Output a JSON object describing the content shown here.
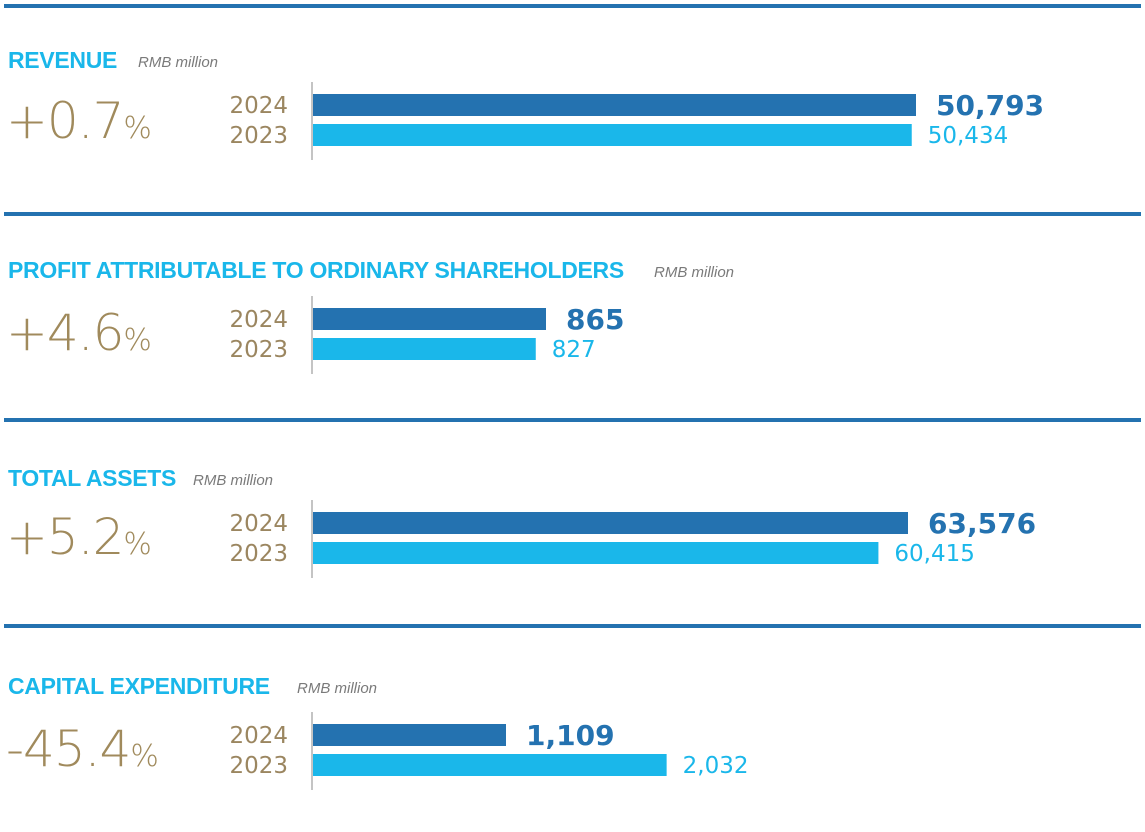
{
  "sections": [
    {
      "title": "REVENUE",
      "unit": "RMB million",
      "change": {
        "number": "+0.7",
        "percent": "%"
      },
      "rows": [
        {
          "year": "2024",
          "value": 50793,
          "label": "50,793"
        },
        {
          "year": "2023",
          "value": 50434,
          "label": "50,434"
        }
      ]
    },
    {
      "title": "PROFIT ATTRIBUTABLE TO ORDINARY SHAREHOLDERS",
      "unit": "RMB million",
      "change": {
        "number": "+4.6",
        "percent": "%"
      },
      "rows": [
        {
          "year": "2024",
          "value": 865,
          "label": "865"
        },
        {
          "year": "2023",
          "value": 827,
          "label": "827"
        }
      ]
    },
    {
      "title": "TOTAL ASSETS",
      "unit": "RMB million",
      "change": {
        "number": "+5.2",
        "percent": "%"
      },
      "rows": [
        {
          "year": "2024",
          "value": 63576,
          "label": "63,576"
        },
        {
          "year": "2023",
          "value": 60415,
          "label": "60,415"
        }
      ]
    },
    {
      "title": "CAPITAL EXPENDITURE",
      "unit": "RMB million",
      "change": {
        "number": "-45.4",
        "percent": "%"
      },
      "rows": [
        {
          "year": "2024",
          "value": 1109,
          "label": "1,109"
        },
        {
          "year": "2023",
          "value": 2032,
          "label": "2,032"
        }
      ]
    }
  ],
  "colors": {
    "rule": "#2472b0",
    "title": "#1ab7ea",
    "change": "#a08a5c",
    "bar_2024": "#2472b0",
    "bar_2023": "#1ab7ea",
    "year_label": "#9b8660"
  },
  "chart_data": [
    {
      "type": "bar",
      "title": "REVENUE",
      "unit": "RMB million",
      "categories": [
        "2024",
        "2023"
      ],
      "values": [
        50793,
        50434
      ]
    },
    {
      "type": "bar",
      "title": "PROFIT ATTRIBUTABLE TO ORDINARY SHAREHOLDERS",
      "unit": "RMB million",
      "categories": [
        "2024",
        "2023"
      ],
      "values": [
        865,
        827
      ]
    },
    {
      "type": "bar",
      "title": "TOTAL ASSETS",
      "unit": "RMB million",
      "categories": [
        "2024",
        "2023"
      ],
      "values": [
        63576,
        60415
      ]
    },
    {
      "type": "bar",
      "title": "CAPITAL EXPENDITURE",
      "unit": "RMB million",
      "categories": [
        "2024",
        "2023"
      ],
      "values": [
        1109,
        2032
      ]
    }
  ]
}
